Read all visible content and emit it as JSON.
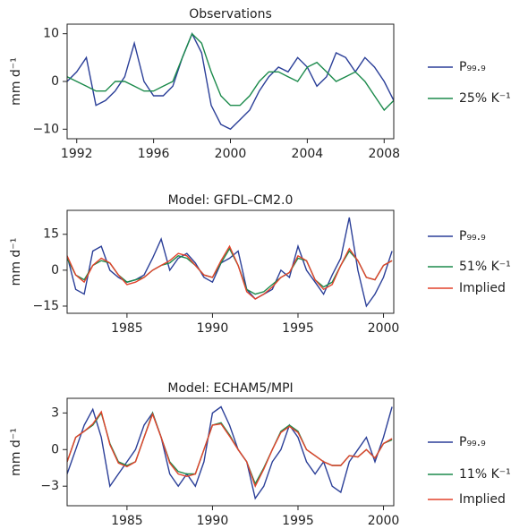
{
  "chart_data": [
    {
      "type": "line",
      "title": "Observations",
      "ylabel": "mm d⁻¹",
      "x": [
        1991.5,
        1992,
        1992.5,
        1993,
        1993.5,
        1994,
        1994.5,
        1995,
        1995.5,
        1996,
        1996.5,
        1997,
        1997.5,
        1998,
        1998.5,
        1999,
        1999.5,
        2000,
        2000.5,
        2001,
        2001.5,
        2002,
        2002.5,
        2003,
        2003.5,
        2004,
        2004.5,
        2005,
        2005.5,
        2006,
        2006.5,
        2007,
        2007.5,
        2008,
        2008.5
      ],
      "xlim": [
        1991.5,
        2008.5
      ],
      "xticks": [
        1992,
        1996,
        2000,
        2004,
        2008
      ],
      "ylim": [
        -12,
        12
      ],
      "yticks": [
        {
          "value": -10,
          "label": "−10"
        },
        0,
        10
      ],
      "series": [
        {
          "name": "P₉₉.₉",
          "color": "#2b3f98",
          "values": [
            0,
            2,
            5,
            -5,
            -4,
            -2,
            1,
            8,
            0,
            -3,
            -3,
            -1,
            5,
            10,
            6,
            -5,
            -9,
            -10,
            -8,
            -6,
            -2,
            1,
            3,
            2,
            5,
            3,
            -1,
            1,
            6,
            5,
            2,
            5,
            3,
            0,
            -4
          ]
        },
        {
          "name": "25% K⁻¹",
          "color": "#1b8a4b",
          "values": [
            1,
            0,
            -1,
            -2,
            -2,
            0,
            0,
            -1,
            -2,
            -2,
            -1,
            0,
            5,
            10,
            8,
            2,
            -3,
            -5,
            -5,
            -3,
            0,
            2,
            2,
            1,
            0,
            3,
            4,
            2,
            0,
            1,
            2,
            0,
            -3,
            -6,
            -4
          ]
        }
      ]
    },
    {
      "type": "line",
      "title": "Model: GFDL–CM2.0",
      "ylabel": "mm d⁻¹",
      "x": [
        1981.5,
        1982,
        1982.5,
        1983,
        1983.5,
        1984,
        1984.5,
        1985,
        1985.5,
        1986,
        1986.5,
        1987,
        1987.5,
        1988,
        1988.5,
        1989,
        1989.5,
        1990,
        1990.5,
        1991,
        1991.5,
        1992,
        1992.5,
        1993,
        1993.5,
        1994,
        1994.5,
        1995,
        1995.5,
        1996,
        1996.5,
        1997,
        1997.5,
        1998,
        1998.5,
        1999,
        1999.5,
        2000,
        2000.5
      ],
      "xlim": [
        1981.5,
        2000.6
      ],
      "xticks": [
        1985,
        1990,
        1995,
        2000
      ],
      "ylim": [
        -18,
        25
      ],
      "yticks": [
        {
          "value": -15,
          "label": "−15"
        },
        0,
        15
      ],
      "series": [
        {
          "name": "P₉₉.₉",
          "color": "#2b3f98",
          "values": [
            6,
            -8,
            -10,
            8,
            10,
            0,
            -3,
            -5,
            -4,
            -2,
            5,
            13,
            0,
            5,
            7,
            3,
            -3,
            -5,
            3,
            5,
            8,
            -8,
            -12,
            -10,
            -8,
            0,
            -3,
            10,
            0,
            -5,
            -10,
            -2,
            5,
            22,
            0,
            -15,
            -10,
            -3,
            8
          ]
        },
        {
          "name": "51% K⁻¹",
          "color": "#1b8a4b",
          "values": [
            5,
            -2,
            -4,
            2,
            4,
            3,
            -2,
            -5,
            -4,
            -3,
            0,
            2,
            3,
            6,
            5,
            2,
            -2,
            -3,
            3,
            9,
            2,
            -8,
            -10,
            -9,
            -6,
            -3,
            -1,
            5,
            4,
            -4,
            -7,
            -5,
            2,
            8,
            4,
            -3,
            -4,
            2,
            4
          ]
        },
        {
          "name": "Implied",
          "color": "#e2422b",
          "values": [
            6,
            -2,
            -5,
            2,
            5,
            3,
            -2,
            -6,
            -5,
            -3,
            0,
            2,
            4,
            7,
            6,
            2,
            -2,
            -3,
            4,
            10,
            2,
            -9,
            -12,
            -10,
            -7,
            -3,
            -1,
            6,
            4,
            -4,
            -8,
            -6,
            2,
            9,
            4,
            -3,
            -4,
            2,
            4
          ]
        }
      ]
    },
    {
      "type": "line",
      "title": "Model: ECHAM5/MPI",
      "ylabel": "mm d⁻¹",
      "x": [
        1981.5,
        1982,
        1982.5,
        1983,
        1983.5,
        1984,
        1984.5,
        1985,
        1985.5,
        1986,
        1986.5,
        1987,
        1987.5,
        1988,
        1988.5,
        1989,
        1989.5,
        1990,
        1990.5,
        1991,
        1991.5,
        1992,
        1992.5,
        1993,
        1993.5,
        1994,
        1994.5,
        1995,
        1995.5,
        1996,
        1996.5,
        1997,
        1997.5,
        1998,
        1998.5,
        1999,
        1999.5,
        2000,
        2000.5
      ],
      "xlim": [
        1981.5,
        2000.6
      ],
      "xticks": [
        1985,
        1990,
        1995,
        2000
      ],
      "ylim": [
        -4.6,
        4.2
      ],
      "yticks": [
        {
          "value": -3,
          "label": "−3"
        },
        0,
        3
      ],
      "series": [
        {
          "name": "P₉₉.₉",
          "color": "#2b3f98",
          "values": [
            -2,
            0,
            2,
            3.3,
            1,
            -3,
            -2,
            -1,
            0,
            2,
            3,
            1,
            -2,
            -3,
            -2,
            -3,
            -1,
            3,
            3.5,
            2,
            0,
            -1,
            -4,
            -3,
            -1,
            0,
            2,
            1,
            -1,
            -2,
            -1,
            -3,
            -3.5,
            -1,
            0,
            1,
            -1,
            1,
            3.5
          ]
        },
        {
          "name": "11% K⁻¹",
          "color": "#1b8a4b",
          "values": [
            -1,
            1,
            1.5,
            2,
            3,
            0.5,
            -1,
            -1.3,
            -1,
            1,
            3,
            1,
            -1,
            -1.8,
            -2,
            -2,
            0,
            2,
            2.2,
            1.2,
            0,
            -1,
            -2.8,
            -1.5,
            0,
            1.5,
            2,
            1.5,
            0,
            -0.5,
            -1,
            -1.3,
            -1.3,
            -0.5,
            -0.6,
            0,
            -0.7,
            0.5,
            0.8
          ]
        },
        {
          "name": "Implied",
          "color": "#e2422b",
          "values": [
            -1,
            1,
            1.5,
            2.1,
            3.1,
            0.4,
            -1.1,
            -1.4,
            -1,
            1,
            2.9,
            1,
            -1.1,
            -2,
            -2.2,
            -2,
            0,
            2,
            2.1,
            1.1,
            0,
            -1,
            -3,
            -1.6,
            0,
            1.4,
            1.9,
            1.4,
            0,
            -0.5,
            -1,
            -1.3,
            -1.3,
            -0.5,
            -0.6,
            0,
            -0.7,
            0.5,
            0.9
          ]
        }
      ]
    }
  ]
}
